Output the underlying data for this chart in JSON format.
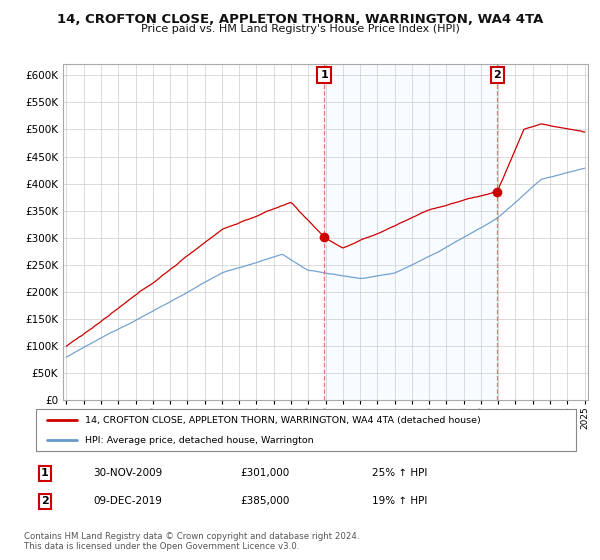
{
  "title": "14, CROFTON CLOSE, APPLETON THORN, WARRINGTON, WA4 4TA",
  "subtitle": "Price paid vs. HM Land Registry's House Price Index (HPI)",
  "legend_label_red": "14, CROFTON CLOSE, APPLETON THORN, WARRINGTON, WA4 4TA (detached house)",
  "legend_label_blue": "HPI: Average price, detached house, Warrington",
  "marker1_date": "30-NOV-2009",
  "marker1_price": 301000,
  "marker1_year": 2009.92,
  "marker1_pct": "25%",
  "marker2_date": "09-DEC-2019",
  "marker2_price": 385000,
  "marker2_year": 2019.95,
  "marker2_pct": "19%",
  "footer": "Contains HM Land Registry data © Crown copyright and database right 2024.\nThis data is licensed under the Open Government Licence v3.0.",
  "red_color": "#cc0000",
  "blue_color": "#6699cc",
  "shade_color": "#ddeeff",
  "vline_color": "#dd4444",
  "background_color": "#ffffff",
  "grid_color": "#cccccc",
  "ylim_min": 0,
  "ylim_max": 620000,
  "xlim_min": 1994.8,
  "xlim_max": 2025.2
}
